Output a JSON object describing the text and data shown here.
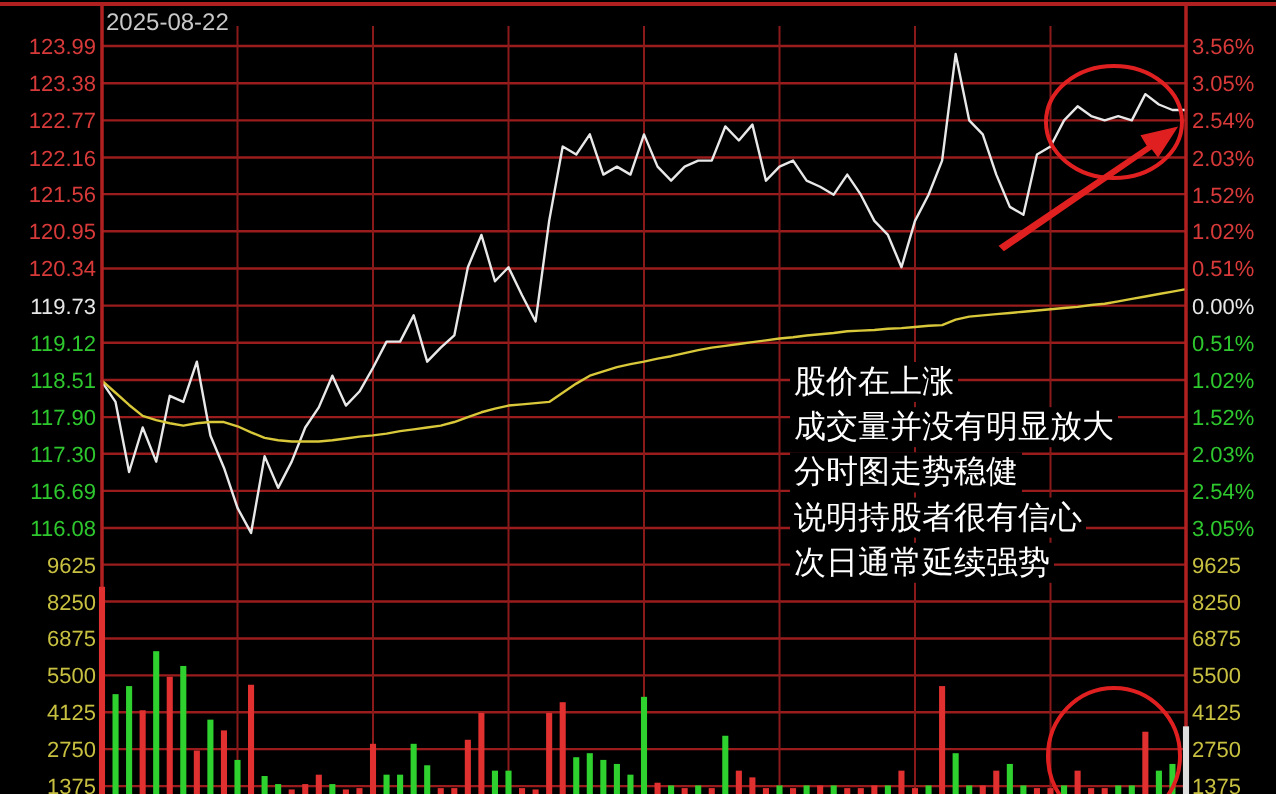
{
  "chart_data": [
    {
      "type": "line",
      "title": "2025-08-22",
      "categories": [
        null,
        null,
        null,
        null,
        null,
        null,
        null,
        null,
        null,
        null,
        null,
        null,
        null,
        null,
        null,
        null,
        null,
        null,
        null,
        null,
        null,
        null,
        null,
        null,
        null,
        null,
        null,
        null,
        null,
        null,
        null,
        null,
        null,
        null,
        null,
        null,
        null,
        null,
        null,
        null,
        null,
        null,
        null,
        null,
        null,
        null,
        null,
        null,
        null,
        null,
        null,
        null,
        null,
        null,
        null,
        null,
        null,
        null,
        null,
        null,
        null,
        null,
        null,
        null,
        null,
        null,
        null,
        null,
        null,
        null,
        null,
        null,
        null,
        null,
        null,
        null,
        null,
        null,
        null,
        null,
        null
      ],
      "series": [
        {
          "color": "#e8e8e8",
          "values": [
            118.48,
            118.15,
            117.0,
            117.73,
            117.17,
            118.25,
            118.15,
            118.81,
            117.6,
            117.07,
            116.41,
            116.0,
            117.26,
            116.74,
            117.17,
            117.73,
            118.06,
            118.58,
            118.09,
            118.32,
            118.71,
            119.14,
            119.14,
            119.57,
            118.81,
            119.04,
            119.24,
            120.36,
            120.89,
            120.13,
            120.36,
            119.9,
            119.47,
            121.12,
            122.34,
            122.21,
            122.54,
            121.88,
            122.01,
            121.88,
            122.54,
            122.01,
            121.78,
            122.01,
            122.11,
            122.11,
            122.67,
            122.44,
            122.7,
            121.78,
            122.01,
            122.11,
            121.78,
            121.68,
            121.55,
            121.88,
            121.55,
            121.12,
            120.89,
            120.36,
            121.12,
            121.55,
            122.11,
            123.86,
            122.77,
            122.54,
            121.88,
            121.35,
            121.22,
            122.21,
            122.34,
            122.77,
            123.0,
            122.84,
            122.77,
            122.84,
            122.77,
            123.2,
            123.03,
            122.94,
            122.94
          ]
        },
        {
          "color": "#d8c83a",
          "values": [
            118.5,
            118.3,
            118.1,
            117.92,
            117.85,
            117.8,
            117.76,
            117.8,
            117.82,
            117.82,
            117.75,
            117.65,
            117.56,
            117.52,
            117.5,
            117.5,
            117.5,
            117.52,
            117.55,
            117.58,
            117.6,
            117.63,
            117.67,
            117.7,
            117.73,
            117.76,
            117.82,
            117.9,
            117.98,
            118.04,
            118.09,
            118.11,
            118.13,
            118.15,
            118.3,
            118.45,
            118.58,
            118.65,
            118.72,
            118.77,
            118.81,
            118.86,
            118.9,
            118.95,
            119.0,
            119.04,
            119.07,
            119.1,
            119.13,
            119.16,
            119.19,
            119.21,
            119.24,
            119.26,
            119.28,
            119.31,
            119.32,
            119.33,
            119.35,
            119.36,
            119.38,
            119.4,
            119.41,
            119.5,
            119.55,
            119.57,
            119.59,
            119.61,
            119.63,
            119.65,
            119.67,
            119.69,
            119.71,
            119.74,
            119.76,
            119.8,
            119.84,
            119.88,
            119.92,
            119.96,
            120.0
          ]
        }
      ],
      "ylim": [
        115.72,
        123.99
      ],
      "yticks": [
        123.99,
        123.38,
        122.77,
        122.16,
        121.56,
        120.95,
        120.34,
        119.73,
        119.12,
        118.51,
        {
          "value": 117.9,
          "label": "117.90"
        },
        {
          "value": 117.3,
          "label": "117.30"
        },
        116.69,
        116.08
      ],
      "y2lim": [
        -3.35,
        3.56
      ],
      "y2ticks": [
        {
          "value": 3.56,
          "label": "3.56%"
        },
        {
          "value": 3.05,
          "label": "3.05%"
        },
        {
          "value": 2.54,
          "label": "2.54%"
        },
        {
          "value": 2.03,
          "label": "2.03%"
        },
        {
          "value": 1.52,
          "label": "1.52%"
        },
        {
          "value": 1.02,
          "label": "1.02%"
        },
        {
          "value": 0.51,
          "label": "0.51%"
        },
        {
          "value": 0,
          "label": "0.00%"
        },
        {
          "value": -0.51,
          "label": "0.51%"
        },
        {
          "value": -1.02,
          "label": "1.02%"
        },
        {
          "value": -1.52,
          "label": "1.52%"
        },
        {
          "value": -2.03,
          "label": "2.03%"
        },
        {
          "value": -2.54,
          "label": "2.54%"
        },
        {
          "value": -3.05,
          "label": "3.05%"
        }
      ],
      "grid": true,
      "annotations": [
        "股价在上涨",
        "成交量并没有明显放大",
        "分时图走势稳健",
        "说明持股者很有信心",
        "次日通常延续强势"
      ]
    },
    {
      "type": "bar",
      "categories": [
        null,
        null,
        null,
        null,
        null,
        null,
        null,
        null,
        null,
        null,
        null,
        null,
        null,
        null,
        null,
        null,
        null,
        null,
        null,
        null,
        null,
        null,
        null,
        null,
        null,
        null,
        null,
        null,
        null,
        null,
        null,
        null,
        null,
        null,
        null,
        null,
        null,
        null,
        null,
        null,
        null,
        null,
        null,
        null,
        null,
        null,
        null,
        null,
        null,
        null,
        null,
        null,
        null,
        null,
        null,
        null,
        null,
        null,
        null,
        null,
        null,
        null,
        null,
        null,
        null,
        null,
        null,
        null,
        null,
        null,
        null,
        null,
        null,
        null,
        null,
        null,
        null,
        null,
        null,
        null,
        null
      ],
      "values": [
        8800,
        4800,
        5100,
        4200,
        6400,
        5450,
        5850,
        2700,
        3850,
        3450,
        2350,
        5150,
        1750,
        1450,
        1250,
        1450,
        1800,
        1450,
        1250,
        1300,
        2950,
        1800,
        1800,
        2950,
        2150,
        1300,
        1300,
        3100,
        4100,
        1950,
        1950,
        1300,
        1250,
        4100,
        4500,
        2450,
        2600,
        2350,
        2200,
        1800,
        4700,
        1500,
        1400,
        1300,
        1400,
        1300,
        3250,
        1950,
        1700,
        1300,
        1400,
        1300,
        1400,
        1400,
        1400,
        1300,
        1300,
        1400,
        1400,
        1950,
        1300,
        1400,
        5100,
        2600,
        1400,
        1400,
        1950,
        2200,
        1400,
        1300,
        1300,
        1400,
        1950,
        1300,
        1300,
        1400,
        1400,
        3400,
        1950,
        2200,
        3600
      ],
      "colors": [
        "#e0302f",
        "#2fd12f",
        "#2fd12f",
        "#e0302f",
        "#2fd12f",
        "#e0302f",
        "#2fd12f",
        "#e0302f",
        "#2fd12f",
        "#e0302f",
        "#2fd12f",
        "#e0302f",
        "#2fd12f",
        "#2fd12f",
        "#e0302f",
        "#e0302f",
        "#e0302f",
        "#2fd12f",
        "#e0302f",
        "#e0302f",
        "#e0302f",
        "#2fd12f",
        "#2fd12f",
        "#2fd12f",
        "#2fd12f",
        "#e0302f",
        "#e0302f",
        "#e0302f",
        "#e0302f",
        "#2fd12f",
        "#2fd12f",
        "#e0302f",
        "#e0302f",
        "#e0302f",
        "#e0302f",
        "#2fd12f",
        "#2fd12f",
        "#2fd12f",
        "#2fd12f",
        "#2fd12f",
        "#2fd12f",
        "#e0302f",
        "#2fd12f",
        "#e0302f",
        "#2fd12f",
        "#e0302f",
        "#2fd12f",
        "#e0302f",
        "#e0302f",
        "#e0302f",
        "#2fd12f",
        "#e0302f",
        "#2fd12f",
        "#e0302f",
        "#2fd12f",
        "#e0302f",
        "#e0302f",
        "#e0302f",
        "#2fd12f",
        "#e0302f",
        "#e0302f",
        "#2fd12f",
        "#e0302f",
        "#2fd12f",
        "#2fd12f",
        "#e0302f",
        "#e0302f",
        "#2fd12f",
        "#2fd12f",
        "#e0302f",
        "#e0302f",
        "#2fd12f",
        "#e0302f",
        "#e0302f",
        "#e0302f",
        "#2fd12f",
        "#2fd12f",
        "#e0302f",
        "#2fd12f",
        "#2fd12f",
        "#dddddd"
      ],
      "ylim": [
        1080,
        10170
      ],
      "yticks": [
        9625,
        8250,
        6875,
        5500,
        4125,
        2750,
        1375
      ],
      "y2lim": [
        1080,
        10170
      ],
      "y2ticks": [
        9625,
        8250,
        6875,
        5500,
        4125,
        2750,
        1375
      ],
      "grid": true
    }
  ]
}
